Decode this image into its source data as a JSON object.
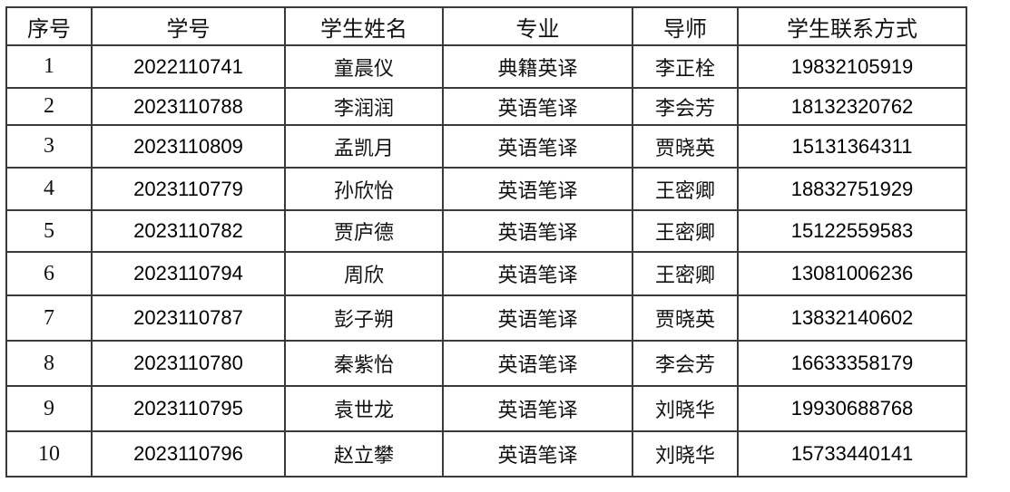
{
  "table": {
    "headers": [
      "序号",
      "学号",
      "学生姓名",
      "专业",
      "导师",
      "学生联系方式"
    ],
    "rows": [
      {
        "index": "1",
        "student_id": "2022110741",
        "name": "童晨仪",
        "major": "典籍英译",
        "advisor": "李正栓",
        "phone": "19832105919"
      },
      {
        "index": "2",
        "student_id": "2023110788",
        "name": "李润润",
        "major": "英语笔译",
        "advisor": "李会芳",
        "phone": "18132320762"
      },
      {
        "index": "3",
        "student_id": "2023110809",
        "name": "孟凯月",
        "major": "英语笔译",
        "advisor": "贾晓英",
        "phone": "15131364311"
      },
      {
        "index": "4",
        "student_id": "2023110779",
        "name": "孙欣怡",
        "major": "英语笔译",
        "advisor": "王密卿",
        "phone": "18832751929"
      },
      {
        "index": "5",
        "student_id": "2023110782",
        "name": "贾庐德",
        "major": "英语笔译",
        "advisor": "王密卿",
        "phone": "15122559583"
      },
      {
        "index": "6",
        "student_id": "2023110794",
        "name": "周欣",
        "major": "英语笔译",
        "advisor": "王密卿",
        "phone": "13081006236"
      },
      {
        "index": "7",
        "student_id": "2023110787",
        "name": "彭子朔",
        "major": "英语笔译",
        "advisor": "贾晓英",
        "phone": "13832140602"
      },
      {
        "index": "8",
        "student_id": "2023110780",
        "name": "秦紫怡",
        "major": "英语笔译",
        "advisor": "李会芳",
        "phone": "16633358179"
      },
      {
        "index": "9",
        "student_id": "2023110795",
        "name": "袁世龙",
        "major": "英语笔译",
        "advisor": "刘晓华",
        "phone": "19930688768"
      },
      {
        "index": "10",
        "student_id": "2023110796",
        "name": "赵立攀",
        "major": "英语笔译",
        "advisor": "刘晓华",
        "phone": "15733440141"
      }
    ]
  }
}
